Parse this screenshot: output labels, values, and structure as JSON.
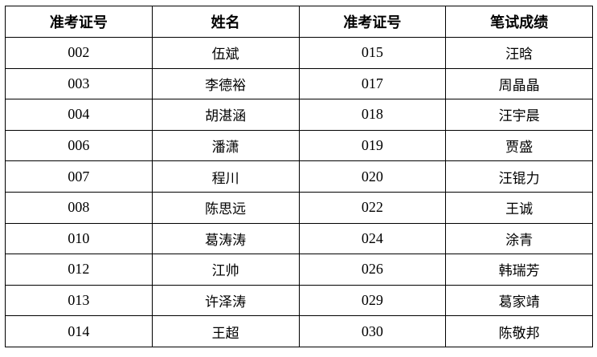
{
  "headers": [
    "准考证号",
    "姓名",
    "准考证号",
    "笔试成绩"
  ],
  "rows": [
    [
      "002",
      "伍斌",
      "015",
      "汪晗"
    ],
    [
      "003",
      "李德裕",
      "017",
      "周晶晶"
    ],
    [
      "004",
      "胡湛涵",
      "018",
      "汪宇晨"
    ],
    [
      "006",
      "潘潇",
      "019",
      "贾盛"
    ],
    [
      "007",
      "程川",
      "020",
      "汪锟力"
    ],
    [
      "008",
      "陈思远",
      "022",
      "王诚"
    ],
    [
      "010",
      "葛涛涛",
      "024",
      "涂青"
    ],
    [
      "012",
      "江帅",
      "026",
      "韩瑞芳"
    ],
    [
      "013",
      "许泽涛",
      "029",
      "葛家靖"
    ],
    [
      "014",
      "王超",
      "030",
      "陈敬邦"
    ]
  ]
}
